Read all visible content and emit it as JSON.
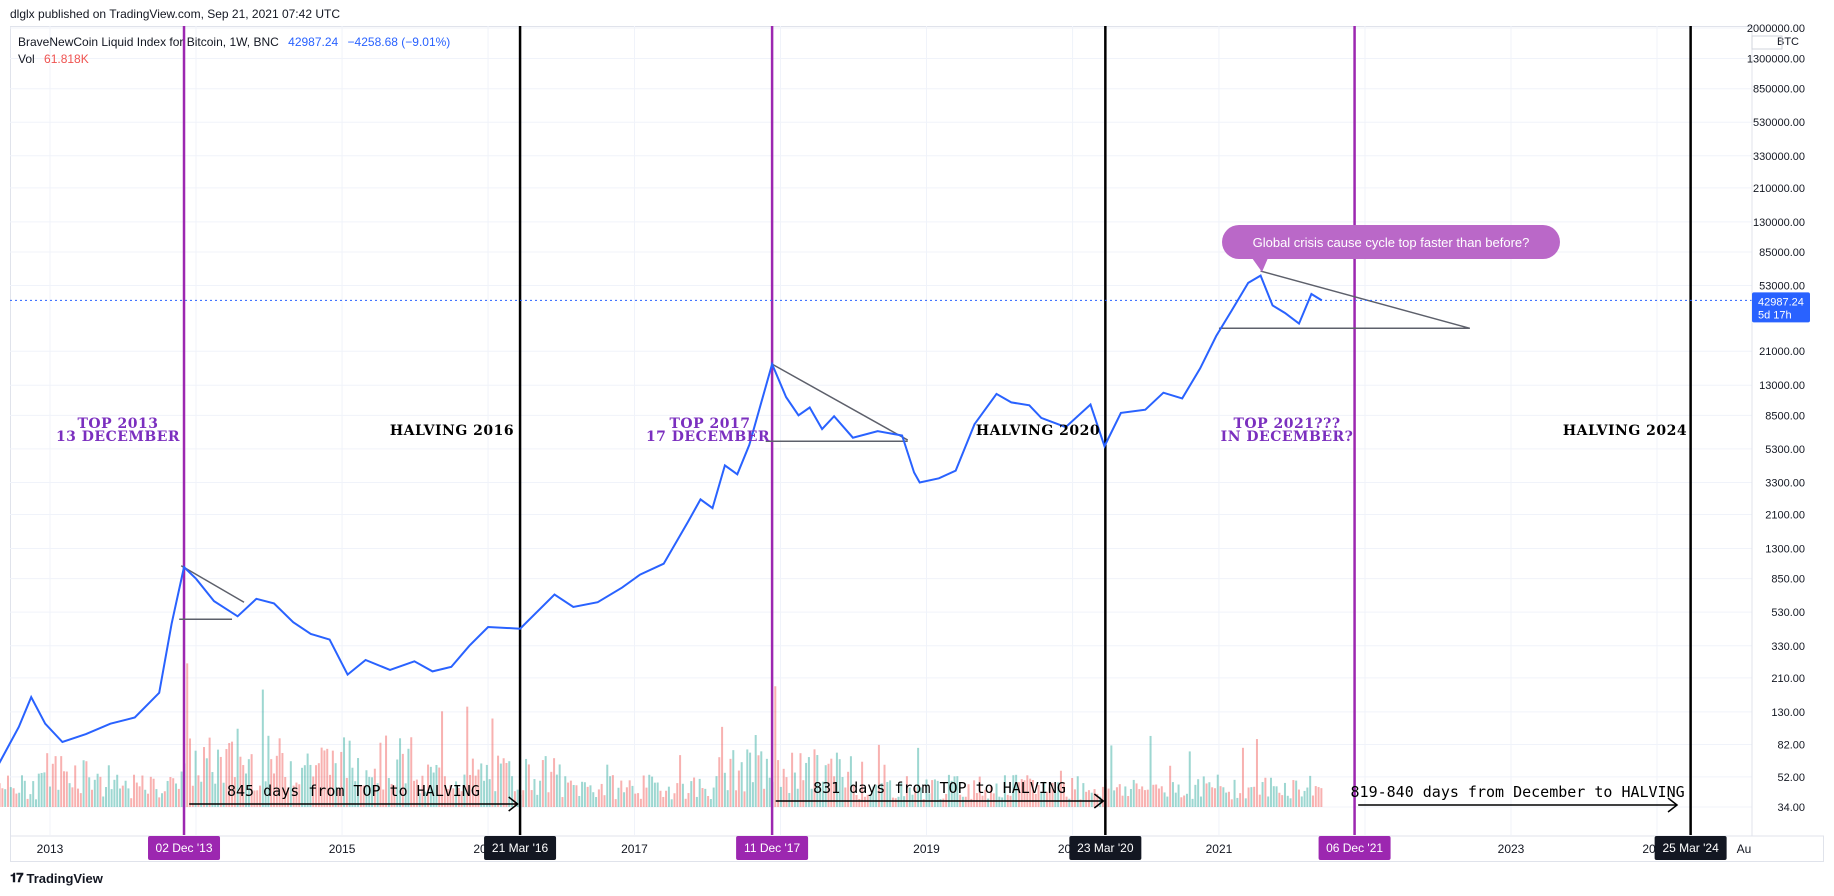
{
  "header": {
    "published": "dlglx published on TradingView.com, Sep 21, 2021 07:42 UTC"
  },
  "legend": {
    "symbol": "BraveNewCoin Liquid Index for Bitcoin, 1W, BNC",
    "price": "42987.24",
    "change": "−4258.68 (−9.01%)",
    "vol_label": "Vol",
    "vol_value": "61.818K"
  },
  "price_axis": {
    "currency": "BTC",
    "ticks": [
      "2000000.00",
      "1300000.00",
      "850000.00",
      "530000.00",
      "330000.00",
      "210000.00",
      "130000.00",
      "85000.00",
      "53000.00",
      "21000.00",
      "13000.00",
      "8500.00",
      "5300.00",
      "3300.00",
      "2100.00",
      "1300.00",
      "850.00",
      "530.00",
      "330.00",
      "210.00",
      "130.00",
      "82.00",
      "52.00",
      "34.00"
    ],
    "last_price": "42987.24",
    "last_countdown": "5d 17h"
  },
  "time_axis": {
    "ticks": [
      "2013",
      "2015",
      "2017",
      "2019",
      "2021",
      "2023"
    ],
    "partial_ticks": [
      "20",
      "20",
      "20",
      "Au"
    ],
    "highlights": [
      {
        "label": "02 Dec '13",
        "kind": "purple"
      },
      {
        "label": "21 Mar '16",
        "kind": "black"
      },
      {
        "label": "11 Dec '17",
        "kind": "purple"
      },
      {
        "label": "23 Mar '20",
        "kind": "black"
      },
      {
        "label": "06 Dec '21",
        "kind": "purple"
      },
      {
        "label": "25 Mar '24",
        "kind": "black"
      }
    ]
  },
  "annotations": {
    "top_2013": [
      "TOP 2013",
      "13 DECEMBER"
    ],
    "halving_2016": "HALVING 2016",
    "top_2017": [
      "TOP 2017",
      "17 DECEMBER"
    ],
    "halving_2020": "HALVING 2020",
    "top_2021": [
      "TOP 2021???",
      "IN DECEMBER?"
    ],
    "halving_2024": "HALVING 2024",
    "arrow1": "845 days from TOP to HALVING",
    "arrow2": "831 days from TOP to HALVING",
    "arrow3": "819-840 days from December to HALVING",
    "callout": "Global crisis cause cycle top faster than before?"
  },
  "footer": {
    "brand": "TradingView"
  },
  "colors": {
    "line": "#2962ff",
    "purple": "#9c27b0",
    "label_purple": "#7b2fbf",
    "callout": "#ba68c8",
    "vol_up": "#26a69a",
    "vol_down": "#ef5350"
  },
  "chart_data": {
    "type": "line",
    "title": "BraveNewCoin Liquid Index for Bitcoin, 1W, BNC",
    "scale": "log",
    "y_unit": "BTC",
    "ylim": [
      30,
      2000000
    ],
    "xlim": [
      "2012-05-01",
      "2024-08-01"
    ],
    "grid": true,
    "legend_position": "top-left",
    "series": [
      {
        "values": [
          [
            "2012-05-01",
            30
          ],
          [
            "2012-08-01",
            48
          ],
          [
            "2012-10-15",
            105
          ],
          [
            "2012-11-15",
            160
          ],
          [
            "2012-12-20",
            110
          ],
          [
            "2013-02-01",
            85
          ],
          [
            "2013-04-01",
            95
          ],
          [
            "2013-06-01",
            110
          ],
          [
            "2013-08-01",
            120
          ],
          [
            "2013-10-01",
            170
          ],
          [
            "2013-11-01",
            450
          ],
          [
            "2013-12-02",
            1000
          ],
          [
            "2014-01-01",
            850
          ],
          [
            "2014-02-15",
            620
          ],
          [
            "2014-03-15",
            560
          ],
          [
            "2014-04-15",
            500
          ],
          [
            "2014-06-01",
            640
          ],
          [
            "2014-07-15",
            600
          ],
          [
            "2014-09-01",
            460
          ],
          [
            "2014-10-15",
            390
          ],
          [
            "2014-12-01",
            360
          ],
          [
            "2015-01-15",
            220
          ],
          [
            "2015-03-01",
            270
          ],
          [
            "2015-05-01",
            235
          ],
          [
            "2015-07-01",
            265
          ],
          [
            "2015-08-15",
            230
          ],
          [
            "2015-10-01",
            245
          ],
          [
            "2015-11-15",
            330
          ],
          [
            "2016-01-01",
            430
          ],
          [
            "2016-03-21",
            420
          ],
          [
            "2016-06-15",
            680
          ],
          [
            "2016-08-01",
            570
          ],
          [
            "2016-10-01",
            610
          ],
          [
            "2016-12-01",
            750
          ],
          [
            "2017-01-15",
            900
          ],
          [
            "2017-03-15",
            1050
          ],
          [
            "2017-05-15",
            1900
          ],
          [
            "2017-06-15",
            2600
          ],
          [
            "2017-07-15",
            2300
          ],
          [
            "2017-08-15",
            4200
          ],
          [
            "2017-09-15",
            3700
          ],
          [
            "2017-10-15",
            5600
          ],
          [
            "2017-12-11",
            17500
          ],
          [
            "2018-01-15",
            11000
          ],
          [
            "2018-02-15",
            8500
          ],
          [
            "2018-03-15",
            9500
          ],
          [
            "2018-04-15",
            7000
          ],
          [
            "2018-05-15",
            8400
          ],
          [
            "2018-07-01",
            6200
          ],
          [
            "2018-09-01",
            6800
          ],
          [
            "2018-11-01",
            6400
          ],
          [
            "2018-12-01",
            3800
          ],
          [
            "2018-12-15",
            3300
          ],
          [
            "2019-02-01",
            3500
          ],
          [
            "2019-03-15",
            3900
          ],
          [
            "2019-05-01",
            7500
          ],
          [
            "2019-06-25",
            11500
          ],
          [
            "2019-08-01",
            10200
          ],
          [
            "2019-09-15",
            9800
          ],
          [
            "2019-10-15",
            8200
          ],
          [
            "2019-12-15",
            7200
          ],
          [
            "2020-02-15",
            9900
          ],
          [
            "2020-03-21",
            5500
          ],
          [
            "2020-05-01",
            8800
          ],
          [
            "2020-07-01",
            9200
          ],
          [
            "2020-08-15",
            11700
          ],
          [
            "2020-10-01",
            10800
          ],
          [
            "2020-11-15",
            16500
          ],
          [
            "2020-12-25",
            26000
          ],
          [
            "2021-02-01",
            37000
          ],
          [
            "2021-03-15",
            55000
          ],
          [
            "2021-04-15",
            61000
          ],
          [
            "2021-05-15",
            40000
          ],
          [
            "2021-06-15",
            36000
          ],
          [
            "2021-07-20",
            31000
          ],
          [
            "2021-08-20",
            47000
          ],
          [
            "2021-09-15",
            42987.24
          ]
        ]
      }
    ]
  }
}
